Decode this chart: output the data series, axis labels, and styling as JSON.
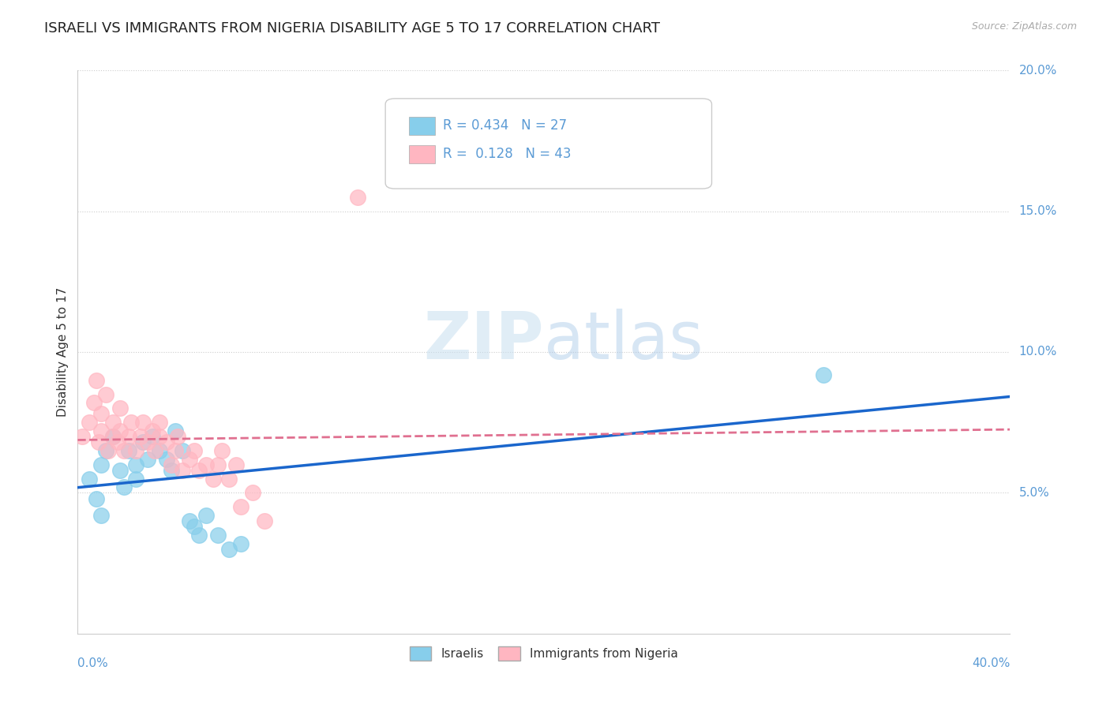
{
  "title": "ISRAELI VS IMMIGRANTS FROM NIGERIA DISABILITY AGE 5 TO 17 CORRELATION CHART",
  "source": "Source: ZipAtlas.com",
  "ylabel": "Disability Age 5 to 17",
  "xlim": [
    0.0,
    0.4
  ],
  "ylim": [
    0.0,
    0.2
  ],
  "legend_r_israeli": "R = 0.434",
  "legend_n_israeli": "N = 27",
  "legend_r_nigeria": "R =  0.128",
  "legend_n_nigeria": "N = 43",
  "israeli_color": "#87CEEB",
  "nigeria_color": "#FFB6C1",
  "israeli_line_color": "#1a66cc",
  "nigeria_line_color": "#e07090",
  "watermark_zip": "ZIP",
  "watermark_atlas": "atlas",
  "israeli_x": [
    0.005,
    0.008,
    0.01,
    0.01,
    0.012,
    0.015,
    0.018,
    0.02,
    0.022,
    0.025,
    0.025,
    0.028,
    0.03,
    0.032,
    0.035,
    0.038,
    0.04,
    0.042,
    0.045,
    0.048,
    0.05,
    0.052,
    0.055,
    0.06,
    0.065,
    0.07,
    0.32
  ],
  "israeli_y": [
    0.055,
    0.048,
    0.042,
    0.06,
    0.065,
    0.07,
    0.058,
    0.052,
    0.065,
    0.06,
    0.055,
    0.068,
    0.062,
    0.07,
    0.065,
    0.062,
    0.058,
    0.072,
    0.065,
    0.04,
    0.038,
    0.035,
    0.042,
    0.035,
    0.03,
    0.032,
    0.092
  ],
  "nigeria_x": [
    0.002,
    0.005,
    0.007,
    0.008,
    0.009,
    0.01,
    0.01,
    0.012,
    0.013,
    0.015,
    0.015,
    0.017,
    0.018,
    0.018,
    0.02,
    0.022,
    0.023,
    0.025,
    0.027,
    0.028,
    0.03,
    0.032,
    0.033,
    0.035,
    0.035,
    0.038,
    0.04,
    0.042,
    0.043,
    0.045,
    0.048,
    0.05,
    0.052,
    0.055,
    0.058,
    0.06,
    0.062,
    0.065,
    0.068,
    0.07,
    0.075,
    0.08,
    0.12
  ],
  "nigeria_y": [
    0.07,
    0.075,
    0.082,
    0.09,
    0.068,
    0.072,
    0.078,
    0.085,
    0.065,
    0.07,
    0.075,
    0.068,
    0.072,
    0.08,
    0.065,
    0.07,
    0.075,
    0.065,
    0.07,
    0.075,
    0.068,
    0.072,
    0.065,
    0.07,
    0.075,
    0.068,
    0.06,
    0.065,
    0.07,
    0.058,
    0.062,
    0.065,
    0.058,
    0.06,
    0.055,
    0.06,
    0.065,
    0.055,
    0.06,
    0.045,
    0.05,
    0.04,
    0.155
  ],
  "background_color": "#ffffff",
  "grid_color": "#cccccc",
  "label_color": "#5b9bd5",
  "ytick_vals": [
    0.05,
    0.1,
    0.15,
    0.2
  ]
}
